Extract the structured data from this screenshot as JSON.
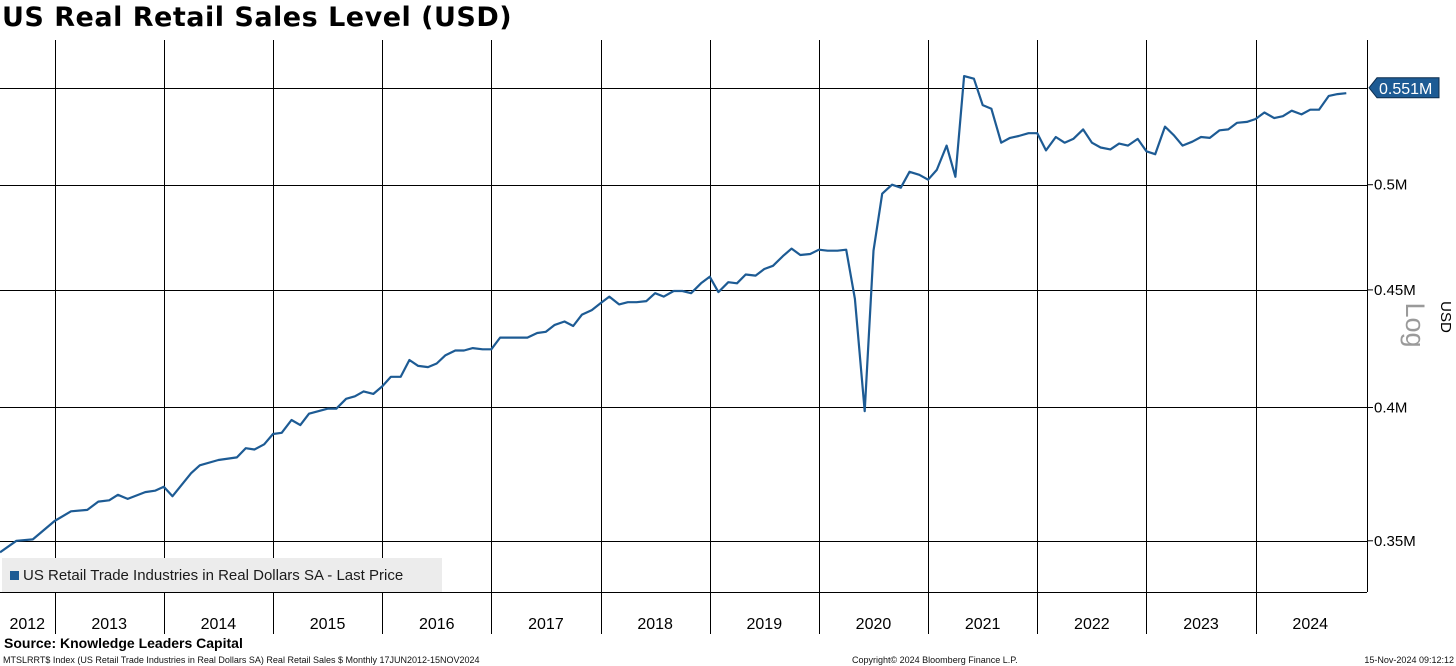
{
  "title": "US Real Retail Sales Level (USD)",
  "legend_label": "US Retail Trade Industries in Real Dollars SA - Last Price",
  "source": "Source:  Knowledge Leaders Capital",
  "footer": {
    "ticker_description": "MTSLRRT$ Index (US Retail Trade Industries in Real Dollars SA) Real Retail Sales $  Monthly 17JUN2012-15NOV2024",
    "copyright": "Copyright© 2024 Bloomberg Finance L.P.",
    "timestamp": "15-Nov-2024 09:12:12"
  },
  "colors": {
    "line": "#1d5b94",
    "grid": "#000000",
    "legend_bg": "#ececec"
  },
  "chart_data": {
    "type": "line",
    "title": "US Real Retail Sales Level (USD)",
    "ylabel": "USD",
    "ylabel_secondary": "Log",
    "y_scale": "log",
    "ylim": [
      0.3325,
      0.578
    ],
    "y_ticks": [
      0.35,
      0.4,
      0.45,
      0.5
    ],
    "y_tick_labels": [
      "0.35M",
      "0.4M",
      "0.45M",
      "0.5M"
    ],
    "last_price_label": "0.551M",
    "last_price_value": 0.551,
    "xlim": [
      2012.0,
      2024.52
    ],
    "x_gridlines": [
      2012.5,
      2013.5,
      2014.5,
      2015.5,
      2016.5,
      2017.5,
      2018.5,
      2019.5,
      2020.5,
      2021.5,
      2022.5,
      2023.5
    ],
    "year_labels": [
      {
        "label": "2012",
        "x": 2012.25
      },
      {
        "label": "2013",
        "x": 2013.0
      },
      {
        "label": "2014",
        "x": 2014.0
      },
      {
        "label": "2015",
        "x": 2015.0
      },
      {
        "label": "2016",
        "x": 2016.0
      },
      {
        "label": "2017",
        "x": 2017.0
      },
      {
        "label": "2018",
        "x": 2018.0
      },
      {
        "label": "2019",
        "x": 2019.0
      },
      {
        "label": "2020",
        "x": 2020.0
      },
      {
        "label": "2021",
        "x": 2021.0
      },
      {
        "label": "2022",
        "x": 2022.0
      },
      {
        "label": "2023",
        "x": 2023.0
      },
      {
        "label": "2024",
        "x": 2024.0
      }
    ],
    "grid": true,
    "legend_position": "bottom-left",
    "series": [
      {
        "name": "US Retail Trade Industries in Real Dollars SA - Last Price",
        "points": [
          [
            2012.0,
            0.346
          ],
          [
            2012.15,
            0.35
          ],
          [
            2012.3,
            0.3505
          ],
          [
            2012.5,
            0.357
          ],
          [
            2012.65,
            0.3605
          ],
          [
            2012.8,
            0.361
          ],
          [
            2012.9,
            0.364
          ],
          [
            2013.0,
            0.3645
          ],
          [
            2013.08,
            0.3665
          ],
          [
            2013.17,
            0.365
          ],
          [
            2013.33,
            0.3675
          ],
          [
            2013.42,
            0.368
          ],
          [
            2013.5,
            0.3695
          ],
          [
            2013.58,
            0.366
          ],
          [
            2013.75,
            0.3745
          ],
          [
            2013.83,
            0.3775
          ],
          [
            2014.0,
            0.3795
          ],
          [
            2014.17,
            0.3805
          ],
          [
            2014.25,
            0.384
          ],
          [
            2014.33,
            0.3835
          ],
          [
            2014.42,
            0.3855
          ],
          [
            2014.5,
            0.3895
          ],
          [
            2014.58,
            0.39
          ],
          [
            2014.67,
            0.395
          ],
          [
            2014.75,
            0.393
          ],
          [
            2014.83,
            0.3975
          ],
          [
            2015.0,
            0.3995
          ],
          [
            2015.08,
            0.3995
          ],
          [
            2015.17,
            0.4035
          ],
          [
            2015.25,
            0.4045
          ],
          [
            2015.33,
            0.4065
          ],
          [
            2015.42,
            0.4055
          ],
          [
            2015.5,
            0.4085
          ],
          [
            2015.58,
            0.4125
          ],
          [
            2015.67,
            0.4125
          ],
          [
            2015.75,
            0.4195
          ],
          [
            2015.83,
            0.417
          ],
          [
            2015.92,
            0.4165
          ],
          [
            2016.0,
            0.418
          ],
          [
            2016.08,
            0.4215
          ],
          [
            2016.17,
            0.4235
          ],
          [
            2016.25,
            0.4235
          ],
          [
            2016.33,
            0.4245
          ],
          [
            2016.42,
            0.424
          ],
          [
            2016.5,
            0.424
          ],
          [
            2016.58,
            0.429
          ],
          [
            2016.75,
            0.429
          ],
          [
            2016.83,
            0.429
          ],
          [
            2016.92,
            0.431
          ],
          [
            2017.0,
            0.4315
          ],
          [
            2017.08,
            0.4345
          ],
          [
            2017.17,
            0.436
          ],
          [
            2017.25,
            0.434
          ],
          [
            2017.33,
            0.439
          ],
          [
            2017.42,
            0.441
          ],
          [
            2017.5,
            0.444
          ],
          [
            2017.58,
            0.447
          ],
          [
            2017.67,
            0.4435
          ],
          [
            2017.75,
            0.4445
          ],
          [
            2017.83,
            0.4445
          ],
          [
            2017.92,
            0.445
          ],
          [
            2018.0,
            0.4485
          ],
          [
            2018.08,
            0.447
          ],
          [
            2018.17,
            0.4495
          ],
          [
            2018.25,
            0.4495
          ],
          [
            2018.33,
            0.4485
          ],
          [
            2018.42,
            0.453
          ],
          [
            2018.5,
            0.456
          ],
          [
            2018.58,
            0.449
          ],
          [
            2018.67,
            0.4535
          ],
          [
            2018.75,
            0.453
          ],
          [
            2018.83,
            0.457
          ],
          [
            2018.92,
            0.4565
          ],
          [
            2019.0,
            0.4595
          ],
          [
            2019.08,
            0.461
          ],
          [
            2019.17,
            0.4655
          ],
          [
            2019.25,
            0.469
          ],
          [
            2019.33,
            0.466
          ],
          [
            2019.42,
            0.4665
          ],
          [
            2019.5,
            0.4685
          ],
          [
            2019.58,
            0.468
          ],
          [
            2019.67,
            0.468
          ],
          [
            2019.75,
            0.4685
          ],
          [
            2019.83,
            0.446
          ],
          [
            2019.92,
            0.3985
          ],
          [
            2020.0,
            0.468
          ],
          [
            2020.08,
            0.4955
          ],
          [
            2020.17,
            0.5
          ],
          [
            2020.25,
            0.4985
          ],
          [
            2020.33,
            0.5065
          ],
          [
            2020.42,
            0.505
          ],
          [
            2020.5,
            0.5025
          ],
          [
            2020.58,
            0.5075
          ],
          [
            2020.67,
            0.52
          ],
          [
            2020.75,
            0.504
          ],
          [
            2020.83,
            0.5575
          ],
          [
            2020.92,
            0.556
          ],
          [
            2021.0,
            0.5415
          ],
          [
            2021.08,
            0.5395
          ],
          [
            2021.17,
            0.5215
          ],
          [
            2021.25,
            0.524
          ],
          [
            2021.33,
            0.525
          ],
          [
            2021.42,
            0.5265
          ],
          [
            2021.5,
            0.5265
          ],
          [
            2021.58,
            0.5175
          ],
          [
            2021.67,
            0.5245
          ],
          [
            2021.75,
            0.5215
          ],
          [
            2021.83,
            0.5235
          ],
          [
            2021.92,
            0.5285
          ],
          [
            2022.0,
            0.5215
          ],
          [
            2022.08,
            0.519
          ],
          [
            2022.17,
            0.518
          ],
          [
            2022.25,
            0.521
          ],
          [
            2022.33,
            0.52
          ],
          [
            2022.42,
            0.5235
          ],
          [
            2022.5,
            0.517
          ],
          [
            2022.58,
            0.5155
          ],
          [
            2022.67,
            0.53
          ],
          [
            2022.75,
            0.5255
          ],
          [
            2022.83,
            0.52
          ],
          [
            2022.92,
            0.522
          ],
          [
            2023.0,
            0.5245
          ],
          [
            2023.08,
            0.524
          ],
          [
            2023.17,
            0.528
          ],
          [
            2023.25,
            0.5285
          ],
          [
            2023.33,
            0.532
          ],
          [
            2023.42,
            0.5325
          ],
          [
            2023.5,
            0.534
          ],
          [
            2023.58,
            0.5375
          ],
          [
            2023.67,
            0.5345
          ],
          [
            2023.75,
            0.5355
          ],
          [
            2023.83,
            0.5385
          ],
          [
            2023.92,
            0.5365
          ],
          [
            2024.0,
            0.539
          ],
          [
            2024.08,
            0.539
          ],
          [
            2024.17,
            0.5465
          ],
          [
            2024.25,
            0.5475
          ],
          [
            2024.33,
            0.548
          ]
        ]
      }
    ]
  }
}
